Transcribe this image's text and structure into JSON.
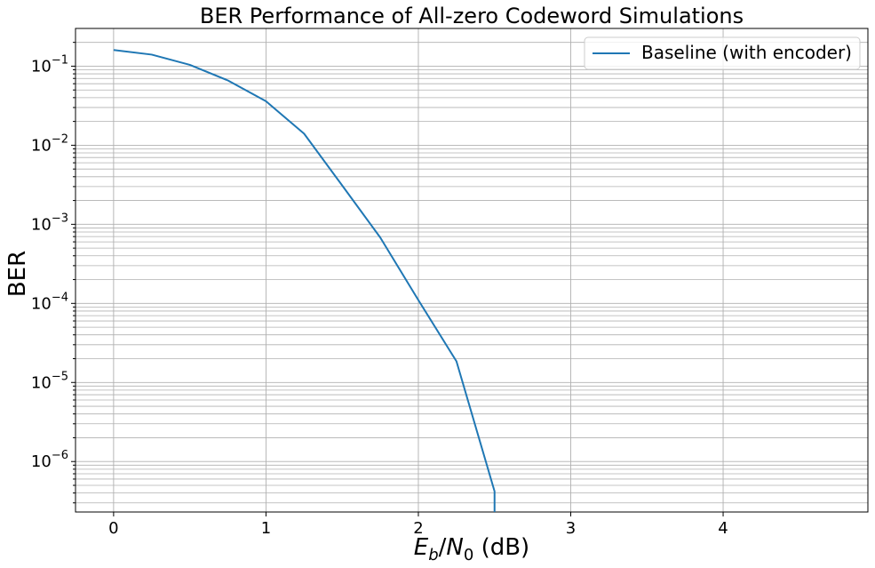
{
  "chart_data": {
    "type": "line",
    "title": "BER Performance of All-zero Codeword Simulations",
    "xlabel": {
      "E": "E",
      "b": "b",
      "slash": "/",
      "N": "N",
      "zero": "0",
      "unit": " (dB)"
    },
    "ylabel": "BER",
    "x_scale": "linear",
    "y_scale": "log",
    "xlim": [
      -0.25,
      4.95
    ],
    "ylim": [
      2.3e-07,
      0.3
    ],
    "x_ticks": [
      0,
      1,
      2,
      3,
      4
    ],
    "x_tick_labels": [
      "0",
      "1",
      "2",
      "3",
      "4"
    ],
    "y_ticks": [
      {
        "value": 0.1,
        "base": "10",
        "exp": "−1"
      },
      {
        "value": 0.01,
        "base": "10",
        "exp": "−2"
      },
      {
        "value": 0.001,
        "base": "10",
        "exp": "−3"
      },
      {
        "value": 0.0001,
        "base": "10",
        "exp": "−4"
      },
      {
        "value": 1e-05,
        "base": "10",
        "exp": "−5"
      },
      {
        "value": 1e-06,
        "base": "10",
        "exp": "−6"
      }
    ],
    "grid": true,
    "legend_position": "top-right",
    "series": [
      {
        "name": "Baseline (with encoder)",
        "color": "#1f77b4",
        "x": [
          0,
          0.25,
          0.5,
          0.75,
          1.0,
          1.25,
          1.5,
          1.75,
          2.0,
          2.25,
          2.5,
          2.5
        ],
        "y": [
          0.16,
          0.14,
          0.104,
          0.066,
          0.036,
          0.014,
          0.0031,
          0.00068,
          0.00011,
          1.85e-05,
          4.2e-07,
          2.3e-07
        ]
      }
    ]
  }
}
